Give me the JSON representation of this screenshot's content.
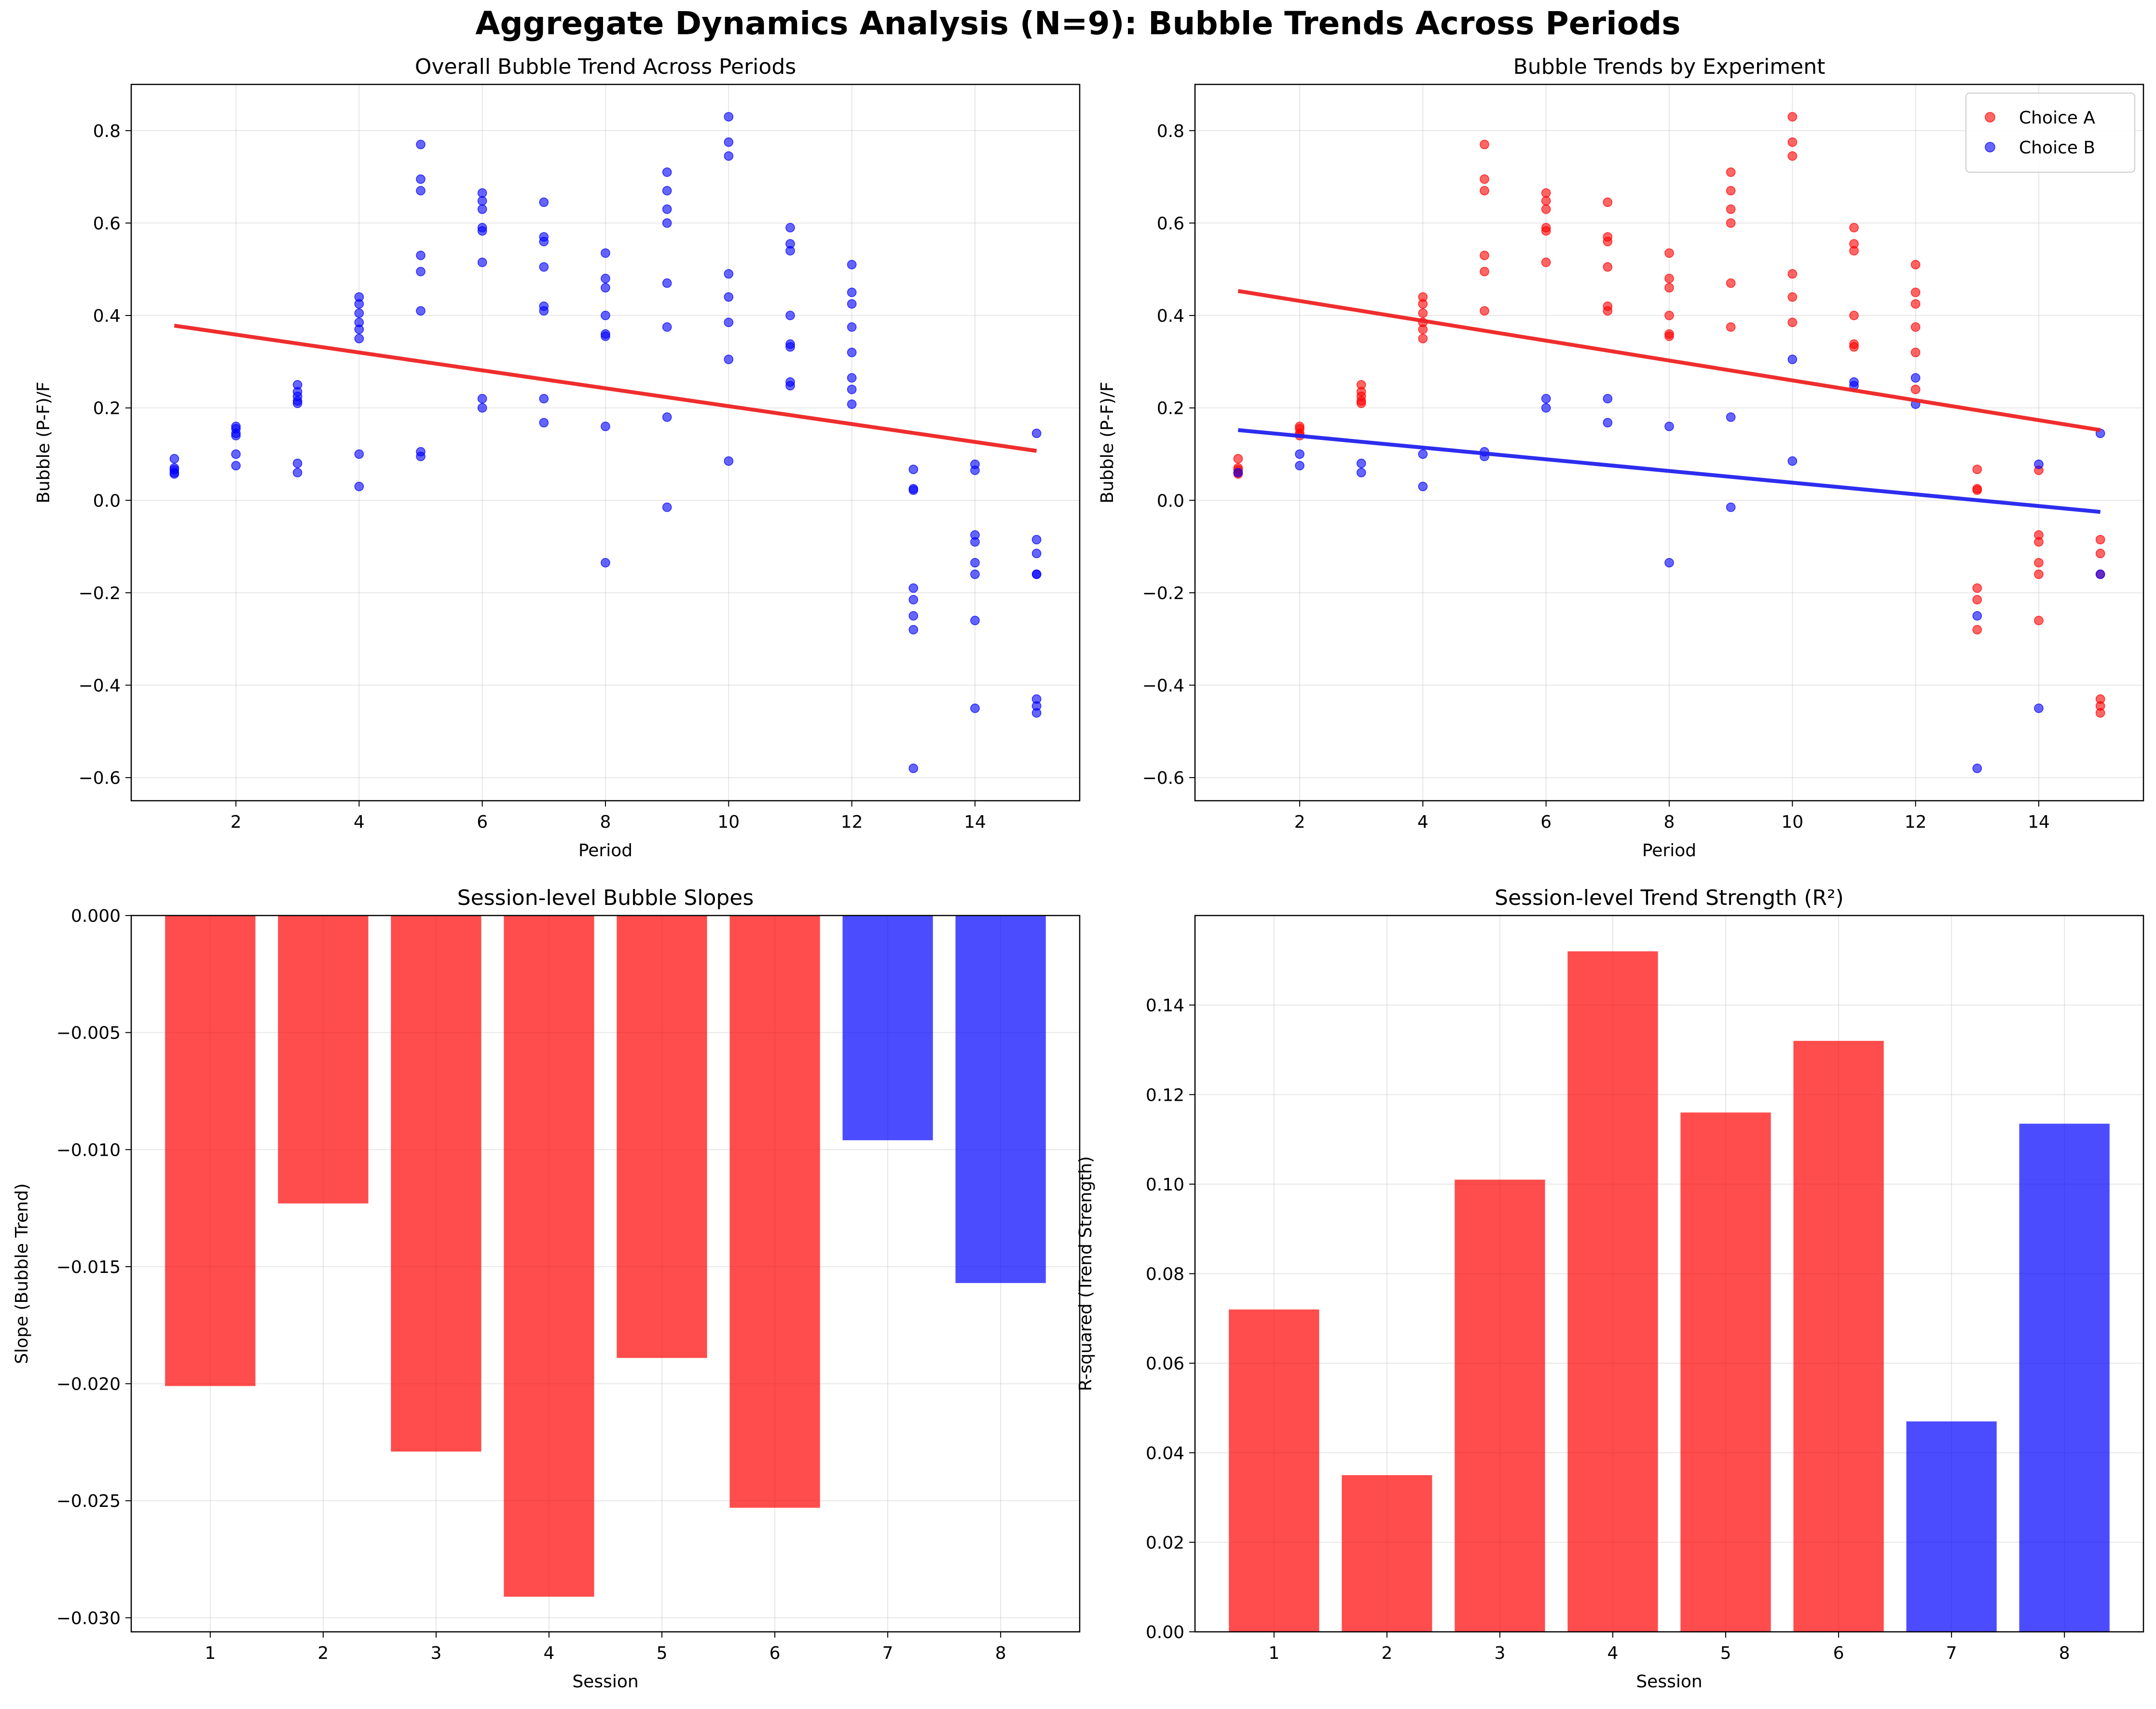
{
  "suptitle": "Aggregate Dynamics Analysis (N=9): Bubble Trends Across Periods",
  "colors": {
    "choice_a": "#ff0000",
    "choice_b": "#0000ff",
    "fit_a": "#ee2222",
    "fit_b": "#2222ee"
  },
  "chart_data": [
    {
      "type": "scatter",
      "title": "Overall Bubble Trend Across Periods",
      "xlabel": "Period",
      "ylabel": "Bubble (P-F)/F",
      "xlim": [
        0.3,
        15.7
      ],
      "ylim": [
        -0.65,
        0.9
      ],
      "xticks": [
        2,
        4,
        6,
        8,
        10,
        12,
        14
      ],
      "yticks": [
        -0.6,
        -0.4,
        -0.2,
        0.0,
        0.2,
        0.4,
        0.6,
        0.8
      ],
      "grid": true,
      "series": [
        {
          "color": "#0000ff",
          "points": [
            [
              1,
              0.09
            ],
            [
              1,
              0.07
            ],
            [
              1,
              0.066
            ],
            [
              1,
              0.06
            ],
            [
              1,
              0.057
            ],
            [
              2,
              0.16
            ],
            [
              2,
              0.155
            ],
            [
              2,
              0.145
            ],
            [
              2,
              0.14
            ],
            [
              2,
              0.1
            ],
            [
              2,
              0.075
            ],
            [
              3,
              0.25
            ],
            [
              3,
              0.235
            ],
            [
              3,
              0.225
            ],
            [
              3,
              0.215
            ],
            [
              3,
              0.21
            ],
            [
              3,
              0.08
            ],
            [
              3,
              0.06
            ],
            [
              4,
              0.44
            ],
            [
              4,
              0.425
            ],
            [
              4,
              0.405
            ],
            [
              4,
              0.385
            ],
            [
              4,
              0.37
            ],
            [
              4,
              0.35
            ],
            [
              4,
              0.1
            ],
            [
              4,
              0.03
            ],
            [
              5,
              0.77
            ],
            [
              5,
              0.695
            ],
            [
              5,
              0.67
            ],
            [
              5,
              0.53
            ],
            [
              5,
              0.495
            ],
            [
              5,
              0.41
            ],
            [
              5,
              0.105
            ],
            [
              5,
              0.095
            ],
            [
              6,
              0.665
            ],
            [
              6,
              0.648
            ],
            [
              6,
              0.63
            ],
            [
              6,
              0.59
            ],
            [
              6,
              0.583
            ],
            [
              6,
              0.515
            ],
            [
              6,
              0.22
            ],
            [
              6,
              0.2
            ],
            [
              7,
              0.645
            ],
            [
              7,
              0.57
            ],
            [
              7,
              0.56
            ],
            [
              7,
              0.505
            ],
            [
              7,
              0.42
            ],
            [
              7,
              0.41
            ],
            [
              7,
              0.22
            ],
            [
              7,
              0.168
            ],
            [
              8,
              0.535
            ],
            [
              8,
              0.48
            ],
            [
              8,
              0.46
            ],
            [
              8,
              0.4
            ],
            [
              8,
              0.36
            ],
            [
              8,
              0.355
            ],
            [
              8,
              0.16
            ],
            [
              8,
              -0.135
            ],
            [
              9,
              0.71
            ],
            [
              9,
              0.67
            ],
            [
              9,
              0.63
            ],
            [
              9,
              0.6
            ],
            [
              9,
              0.47
            ],
            [
              9,
              0.375
            ],
            [
              9,
              0.18
            ],
            [
              9,
              -0.015
            ],
            [
              10,
              0.83
            ],
            [
              10,
              0.775
            ],
            [
              10,
              0.745
            ],
            [
              10,
              0.49
            ],
            [
              10,
              0.44
            ],
            [
              10,
              0.385
            ],
            [
              10,
              0.305
            ],
            [
              10,
              0.085
            ],
            [
              11,
              0.59
            ],
            [
              11,
              0.555
            ],
            [
              11,
              0.54
            ],
            [
              11,
              0.4
            ],
            [
              11,
              0.338
            ],
            [
              11,
              0.332
            ],
            [
              11,
              0.256
            ],
            [
              11,
              0.248
            ],
            [
              12,
              0.51
            ],
            [
              12,
              0.45
            ],
            [
              12,
              0.425
            ],
            [
              12,
              0.375
            ],
            [
              12,
              0.32
            ],
            [
              12,
              0.265
            ],
            [
              12,
              0.24
            ],
            [
              12,
              0.208
            ],
            [
              13,
              0.067
            ],
            [
              13,
              0.025
            ],
            [
              13,
              0.022
            ],
            [
              13,
              -0.19
            ],
            [
              13,
              -0.215
            ],
            [
              13,
              -0.25
            ],
            [
              13,
              -0.28
            ],
            [
              13,
              -0.58
            ],
            [
              14,
              0.078
            ],
            [
              14,
              0.065
            ],
            [
              14,
              -0.075
            ],
            [
              14,
              -0.09
            ],
            [
              14,
              -0.135
            ],
            [
              14,
              -0.16
            ],
            [
              14,
              -0.26
            ],
            [
              14,
              -0.45
            ],
            [
              15,
              0.145
            ],
            [
              15,
              -0.085
            ],
            [
              15,
              -0.115
            ],
            [
              15,
              -0.16
            ],
            [
              15,
              -0.16
            ],
            [
              15,
              -0.43
            ],
            [
              15,
              -0.445
            ],
            [
              15,
              -0.46
            ]
          ]
        }
      ],
      "fit_lines": [
        {
          "color": "#ee2222",
          "x": [
            1,
            15
          ],
          "y": [
            0.378,
            0.107
          ]
        }
      ]
    },
    {
      "type": "scatter",
      "title": "Bubble Trends by Experiment",
      "xlabel": "Period",
      "ylabel": "Bubble (P-F)/F",
      "xlim": [
        0.3,
        15.7
      ],
      "ylim": [
        -0.65,
        0.9
      ],
      "xticks": [
        2,
        4,
        6,
        8,
        10,
        12,
        14
      ],
      "yticks": [
        -0.6,
        -0.4,
        -0.2,
        0.0,
        0.2,
        0.4,
        0.6,
        0.8
      ],
      "grid": true,
      "legend_position": "top-right",
      "series": [
        {
          "name": "Choice A",
          "color": "#ff0000",
          "points": [
            [
              1,
              0.09
            ],
            [
              1,
              0.07
            ],
            [
              1,
              0.066
            ],
            [
              1,
              0.06
            ],
            [
              1,
              0.057
            ],
            [
              2,
              0.16
            ],
            [
              2,
              0.155
            ],
            [
              2,
              0.145
            ],
            [
              2,
              0.14
            ],
            [
              3,
              0.25
            ],
            [
              3,
              0.235
            ],
            [
              3,
              0.225
            ],
            [
              3,
              0.215
            ],
            [
              3,
              0.21
            ],
            [
              4,
              0.44
            ],
            [
              4,
              0.425
            ],
            [
              4,
              0.405
            ],
            [
              4,
              0.385
            ],
            [
              4,
              0.37
            ],
            [
              4,
              0.35
            ],
            [
              5,
              0.77
            ],
            [
              5,
              0.695
            ],
            [
              5,
              0.67
            ],
            [
              5,
              0.53
            ],
            [
              5,
              0.495
            ],
            [
              5,
              0.41
            ],
            [
              6,
              0.665
            ],
            [
              6,
              0.648
            ],
            [
              6,
              0.63
            ],
            [
              6,
              0.59
            ],
            [
              6,
              0.583
            ],
            [
              6,
              0.515
            ],
            [
              7,
              0.645
            ],
            [
              7,
              0.57
            ],
            [
              7,
              0.56
            ],
            [
              7,
              0.505
            ],
            [
              7,
              0.42
            ],
            [
              7,
              0.41
            ],
            [
              8,
              0.535
            ],
            [
              8,
              0.48
            ],
            [
              8,
              0.46
            ],
            [
              8,
              0.4
            ],
            [
              8,
              0.36
            ],
            [
              8,
              0.355
            ],
            [
              9,
              0.71
            ],
            [
              9,
              0.67
            ],
            [
              9,
              0.63
            ],
            [
              9,
              0.6
            ],
            [
              9,
              0.47
            ],
            [
              9,
              0.375
            ],
            [
              10,
              0.83
            ],
            [
              10,
              0.775
            ],
            [
              10,
              0.745
            ],
            [
              10,
              0.49
            ],
            [
              10,
              0.44
            ],
            [
              10,
              0.385
            ],
            [
              11,
              0.59
            ],
            [
              11,
              0.555
            ],
            [
              11,
              0.54
            ],
            [
              11,
              0.4
            ],
            [
              11,
              0.338
            ],
            [
              11,
              0.332
            ],
            [
              12,
              0.51
            ],
            [
              12,
              0.45
            ],
            [
              12,
              0.425
            ],
            [
              12,
              0.375
            ],
            [
              12,
              0.32
            ],
            [
              12,
              0.24
            ],
            [
              13,
              0.067
            ],
            [
              13,
              0.025
            ],
            [
              13,
              0.022
            ],
            [
              13,
              -0.19
            ],
            [
              13,
              -0.215
            ],
            [
              13,
              -0.28
            ],
            [
              14,
              0.065
            ],
            [
              14,
              -0.075
            ],
            [
              14,
              -0.09
            ],
            [
              14,
              -0.135
            ],
            [
              14,
              -0.16
            ],
            [
              14,
              -0.26
            ],
            [
              15,
              -0.085
            ],
            [
              15,
              -0.115
            ],
            [
              15,
              -0.16
            ],
            [
              15,
              -0.43
            ],
            [
              15,
              -0.445
            ],
            [
              15,
              -0.46
            ]
          ]
        },
        {
          "name": "Choice B",
          "color": "#0000ff",
          "points": [
            [
              1,
              0.06
            ],
            [
              2,
              0.1
            ],
            [
              2,
              0.075
            ],
            [
              3,
              0.08
            ],
            [
              3,
              0.06
            ],
            [
              4,
              0.1
            ],
            [
              4,
              0.03
            ],
            [
              5,
              0.105
            ],
            [
              5,
              0.095
            ],
            [
              6,
              0.22
            ],
            [
              6,
              0.2
            ],
            [
              7,
              0.22
            ],
            [
              7,
              0.168
            ],
            [
              8,
              0.16
            ],
            [
              8,
              -0.135
            ],
            [
              9,
              0.18
            ],
            [
              9,
              -0.015
            ],
            [
              10,
              0.305
            ],
            [
              10,
              0.085
            ],
            [
              11,
              0.256
            ],
            [
              11,
              0.248
            ],
            [
              12,
              0.265
            ],
            [
              12,
              0.208
            ],
            [
              13,
              -0.25
            ],
            [
              13,
              -0.58
            ],
            [
              14,
              0.078
            ],
            [
              14,
              -0.45
            ],
            [
              15,
              0.145
            ],
            [
              15,
              -0.16
            ]
          ]
        }
      ],
      "fit_lines": [
        {
          "color": "#ee2222",
          "x": [
            1,
            15
          ],
          "y": [
            0.453,
            0.152
          ]
        },
        {
          "color": "#2222ee",
          "x": [
            1,
            15
          ],
          "y": [
            0.152,
            -0.025
          ]
        }
      ]
    },
    {
      "type": "bar",
      "title": "Session-level Bubble Slopes",
      "xlabel": "Session",
      "ylabel": "Slope (Bubble Trend)",
      "categories": [
        "1",
        "2",
        "3",
        "4",
        "5",
        "6",
        "7",
        "8"
      ],
      "values": [
        -0.0201,
        -0.0123,
        -0.0229,
        -0.0291,
        -0.0189,
        -0.0253,
        -0.0096,
        -0.0157
      ],
      "bar_colors": [
        "#ff0000",
        "#ff0000",
        "#ff0000",
        "#ff0000",
        "#ff0000",
        "#ff0000",
        "#0000ff",
        "#0000ff"
      ],
      "ylim": [
        -0.0306,
        0.0
      ],
      "yticks": [
        -0.03,
        -0.025,
        -0.02,
        -0.015,
        -0.01,
        -0.005,
        0.0
      ],
      "grid": true
    },
    {
      "type": "bar",
      "title": "Session-level Trend Strength (R²)",
      "xlabel": "Session",
      "ylabel": "R-squared (Trend Strength)",
      "categories": [
        "1",
        "2",
        "3",
        "4",
        "5",
        "6",
        "7",
        "8"
      ],
      "values": [
        0.072,
        0.035,
        0.101,
        0.152,
        0.116,
        0.132,
        0.047,
        0.1135
      ],
      "bar_colors": [
        "#ff0000",
        "#ff0000",
        "#ff0000",
        "#ff0000",
        "#ff0000",
        "#ff0000",
        "#0000ff",
        "#0000ff"
      ],
      "ylim": [
        0.0,
        0.16
      ],
      "yticks": [
        0.0,
        0.02,
        0.04,
        0.06,
        0.08,
        0.1,
        0.12,
        0.14
      ],
      "grid": true
    }
  ]
}
